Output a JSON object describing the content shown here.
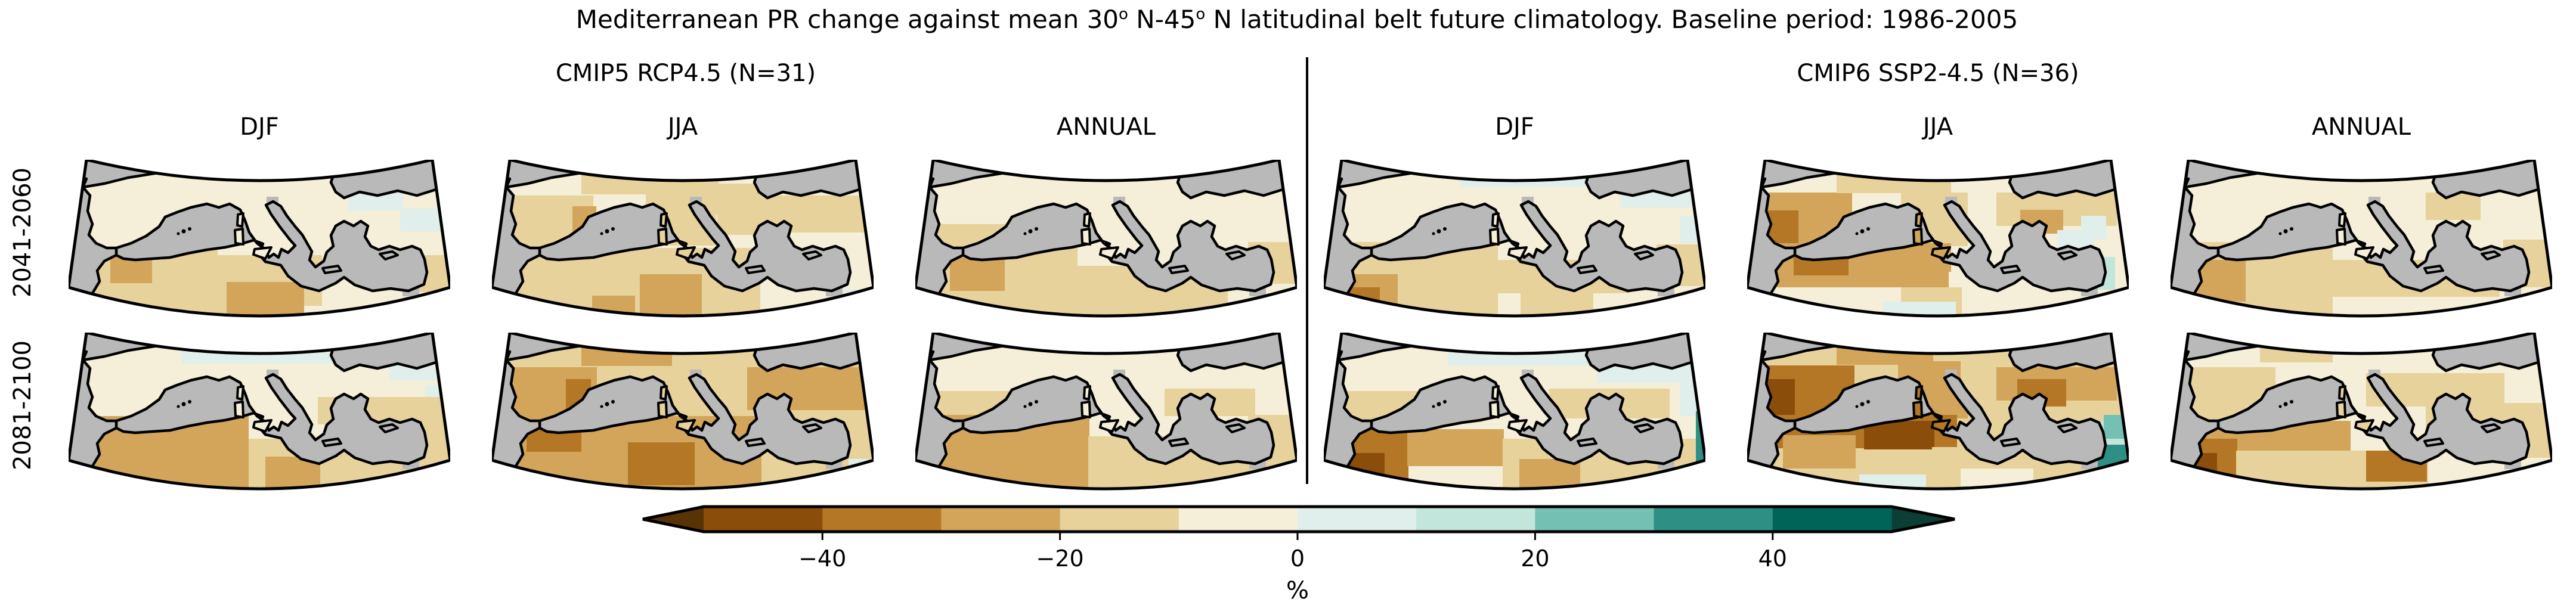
{
  "title": {
    "parts": [
      "Mediterranean PR change against mean 30",
      "o",
      " N-45",
      "o",
      " N latitudinal belt future climatology. Baseline period: 1986-2005"
    ]
  },
  "groups": [
    {
      "label": "CMIP5 RCP4.5 (N=31)"
    },
    {
      "label": "CMIP6 SSP2-4.5 (N=36)"
    }
  ],
  "columns": [
    "DJF",
    "JJA",
    "ANNUAL",
    "DJF",
    "JJA",
    "ANNUAL"
  ],
  "rows": [
    "2041-2060",
    "2081-2100"
  ],
  "palette": {
    "bin_colors": [
      "#8a4e0a",
      "#b37726",
      "#d2a55a",
      "#e8d29c",
      "#f5eed8",
      "#e0efeb",
      "#c2e5dc",
      "#74c0b2",
      "#2e9085",
      "#016459"
    ],
    "under_arrow": "#573305",
    "over_arrow": "#0b3f35",
    "sea_mask": "#b9b9b9",
    "coastline": "#000000"
  },
  "colorbar": {
    "unit": "%",
    "tick_labels": [
      "−40",
      "−20",
      "0",
      "20",
      "40"
    ],
    "tick_values": [
      -40,
      -20,
      0,
      20,
      40
    ],
    "range": [
      -50,
      50
    ],
    "levels": [
      -50,
      -40,
      -30,
      -20,
      -10,
      0,
      10,
      20,
      30,
      40,
      50
    ],
    "extend": "both"
  },
  "chart_data": {
    "type": "heatmap",
    "subtype": "map-panel-grid",
    "title": "Mediterranean PR change against mean 30° N-45° N latitudinal belt future climatology. Baseline period: 1986-2005",
    "variable": "precipitation change (%)",
    "value_range": [
      -50,
      50
    ],
    "legend_position": "bottom",
    "col_groups": [
      {
        "label": "CMIP5 RCP4.5 (N=31)",
        "seasons": [
          "DJF",
          "JJA",
          "ANNUAL"
        ]
      },
      {
        "label": "CMIP6 SSP2-4.5 (N=36)",
        "seasons": [
          "DJF",
          "JJA",
          "ANNUAL"
        ]
      }
    ],
    "periods": [
      "2041-2060",
      "2081-2100"
    ],
    "panels": [
      {
        "row": 0,
        "col": 0,
        "scenario": "CMIP5 RCP4.5",
        "season": "DJF",
        "period": "2041-2060",
        "base": 4,
        "islands": null,
        "summary": "Weak drying (0 to -20%) over most land; -20 to -30% patches over NW Africa; slight wetting near NE edge",
        "patches": [
          [
            40,
            148,
            210,
            70,
            3
          ],
          [
            70,
            162,
            70,
            45,
            2
          ],
          [
            40,
            210,
            270,
            58,
            3
          ],
          [
            245,
            160,
            180,
            85,
            3
          ],
          [
            265,
            205,
            130,
            63,
            2
          ],
          [
            560,
            160,
            80,
            62,
            3
          ],
          [
            470,
            56,
            90,
            30,
            5
          ],
          [
            556,
            82,
            84,
            38,
            5
          ]
        ]
      },
      {
        "row": 0,
        "col": 1,
        "scenario": "CMIP5 RCP4.5",
        "season": "JJA",
        "period": "2041-2060",
        "base": 4,
        "islands": 3,
        "summary": "Drying -10 to -20% over Iberia, France, Italy and Anatolia; -20 to -30% patches in Libya; near zero SE",
        "patches": [
          [
            30,
            60,
            140,
            95,
            3
          ],
          [
            135,
            78,
            40,
            66,
            2
          ],
          [
            150,
            0,
            230,
            58,
            3
          ],
          [
            258,
            58,
            118,
            86,
            3
          ],
          [
            358,
            40,
            104,
            52,
            3
          ],
          [
            418,
            60,
            222,
            62,
            3
          ],
          [
            378,
            86,
            92,
            40,
            3
          ],
          [
            30,
            148,
            420,
            120,
            3
          ],
          [
            248,
            192,
            104,
            76,
            2
          ],
          [
            168,
            228,
            72,
            40,
            2
          ],
          [
            452,
            158,
            188,
            110,
            4
          ],
          [
            588,
            218,
            52,
            50,
            5
          ]
        ]
      },
      {
        "row": 0,
        "col": 2,
        "scenario": "CMIP5 RCP4.5",
        "season": "ANNUAL",
        "period": "2041-2060",
        "base": 4,
        "islands": null,
        "summary": "Mostly 0 to -10%; -10 to -20% over NW Africa with -20 to -30% core over Morocco",
        "patches": [
          [
            30,
            108,
            142,
            46,
            3
          ],
          [
            30,
            148,
            242,
            120,
            3
          ],
          [
            58,
            164,
            92,
            56,
            2
          ],
          [
            272,
            178,
            252,
            90,
            3
          ],
          [
            598,
            0,
            42,
            30,
            5
          ],
          [
            558,
            138,
            82,
            70,
            3
          ]
        ]
      },
      {
        "row": 0,
        "col": 3,
        "scenario": "CMIP6 SSP2-4.5",
        "season": "DJF",
        "period": "2041-2060",
        "base": 4,
        "islands": null,
        "summary": "Slight wetting (0-10%) along northern edge and Black Sea coast; -10 to -30% over NW Africa, strongest SW Morocco",
        "patches": [
          [
            228,
            0,
            282,
            46,
            5
          ],
          [
            498,
            40,
            142,
            40,
            5
          ],
          [
            598,
            94,
            42,
            46,
            5
          ],
          [
            30,
            138,
            262,
            130,
            3
          ],
          [
            30,
            192,
            94,
            76,
            2
          ],
          [
            30,
            214,
            64,
            54,
            1
          ],
          [
            290,
            168,
            222,
            56,
            3
          ],
          [
            558,
            142,
            82,
            70,
            3
          ],
          [
            330,
            212,
            122,
            56,
            3
          ]
        ]
      },
      {
        "row": 0,
        "col": 4,
        "scenario": "CMIP6 SSP2-4.5",
        "season": "JJA",
        "period": "2041-2060",
        "base": 4,
        "islands": 2,
        "summary": "Drying -20 to -40% over Iberia (strongest Portugal) and the Maghreb; +10 to +20% patch at SE edge",
        "patches": [
          [
            30,
            55,
            146,
            100,
            2
          ],
          [
            30,
            85,
            56,
            66,
            1
          ],
          [
            150,
            0,
            192,
            56,
            3
          ],
          [
            258,
            55,
            112,
            90,
            3
          ],
          [
            418,
            55,
            202,
            56,
            3
          ],
          [
            458,
            84,
            72,
            40,
            2
          ],
          [
            30,
            140,
            312,
            74,
            2
          ],
          [
            78,
            148,
            92,
            46,
            1
          ],
          [
            338,
            188,
            222,
            80,
            4
          ],
          [
            258,
            214,
            102,
            54,
            3
          ],
          [
            520,
            118,
            62,
            50,
            5
          ],
          [
            560,
            94,
            42,
            40,
            5
          ],
          [
            545,
            163,
            72,
            55,
            6
          ],
          [
            228,
            238,
            122,
            30,
            5
          ]
        ]
      },
      {
        "row": 0,
        "col": 5,
        "scenario": "CMIP6 SSP2-4.5",
        "season": "ANNUAL",
        "period": "2041-2060",
        "base": 4,
        "islands": null,
        "summary": "Mild drying -10 to -20% over NW Africa and Morocco; near zero elsewhere",
        "patches": [
          [
            30,
            138,
            242,
            130,
            3
          ],
          [
            34,
            168,
            92,
            70,
            2
          ],
          [
            270,
            168,
            282,
            62,
            3
          ],
          [
            428,
            55,
            92,
            46,
            3
          ],
          [
            558,
            134,
            82,
            80,
            3
          ],
          [
            612,
            0,
            28,
            24,
            5
          ]
        ]
      },
      {
        "row": 1,
        "col": 0,
        "scenario": "CMIP5 RCP4.5",
        "season": "DJF",
        "period": "2081-2100",
        "base": 4,
        "islands": null,
        "summary": "Wetting band 0-10% along northern edge; -20 to -30% over NW Africa; -10 to -20% along south Turkey coast",
        "patches": [
          [
            190,
            0,
            312,
            52,
            5
          ],
          [
            538,
            40,
            102,
            40,
            5
          ],
          [
            598,
            88,
            42,
            42,
            5
          ],
          [
            30,
            140,
            272,
            128,
            2
          ],
          [
            302,
            178,
            338,
            90,
            3
          ],
          [
            418,
            108,
            222,
            46,
            3
          ],
          [
            558,
            148,
            82,
            70,
            3
          ],
          [
            330,
            208,
            92,
            60,
            2
          ]
        ]
      },
      {
        "row": 1,
        "col": 1,
        "scenario": "CMIP5 RCP4.5",
        "season": "JJA",
        "period": "2081-2100",
        "base": 3,
        "islands": 3,
        "summary": "Widespread -10 to -30% drying; -30 to -40% spots over Spain, W Turkey and the Maghreb; slight wetting SE corner",
        "patches": [
          [
            30,
            58,
            146,
            96,
            2
          ],
          [
            124,
            78,
            42,
            52,
            1
          ],
          [
            150,
            0,
            152,
            56,
            2
          ],
          [
            438,
            68,
            82,
            56,
            1
          ],
          [
            428,
            58,
            212,
            72,
            2
          ],
          [
            30,
            140,
            422,
            128,
            2
          ],
          [
            58,
            150,
            92,
            50,
            1
          ],
          [
            228,
            184,
            112,
            72,
            1
          ],
          [
            468,
            168,
            172,
            100,
            3
          ],
          [
            598,
            212,
            42,
            56,
            5
          ],
          [
            598,
            4,
            42,
            32,
            5
          ]
        ]
      },
      {
        "row": 1,
        "col": 2,
        "scenario": "CMIP5 RCP4.5",
        "season": "ANNUAL",
        "period": "2081-2100",
        "base": 4,
        "islands": null,
        "summary": "Moderate drying; -20 to -30% over NW Africa; -10 to -20% across North Africa and S Iberia",
        "patches": [
          [
            30,
            98,
            146,
            56,
            3
          ],
          [
            30,
            138,
            262,
            130,
            2
          ],
          [
            290,
            174,
            350,
            94,
            3
          ],
          [
            418,
            94,
            152,
            46,
            3
          ],
          [
            558,
            138,
            82,
            80,
            3
          ],
          [
            608,
            0,
            32,
            26,
            5
          ]
        ]
      },
      {
        "row": 1,
        "col": 3,
        "scenario": "CMIP6 SSP2-4.5",
        "season": "DJF",
        "period": "2081-2100",
        "base": 4,
        "islands": null,
        "summary": "Wetting band 0-10% along northern edge; strong drying -30 to -50% Morocco/W Algeria; +30 to +40% sliver at E edge",
        "patches": [
          [
            208,
            0,
            332,
            56,
            5
          ],
          [
            458,
            40,
            182,
            44,
            5
          ],
          [
            598,
            84,
            42,
            56,
            5
          ],
          [
            30,
            98,
            146,
            52,
            3
          ],
          [
            30,
            162,
            112,
            106,
            1
          ],
          [
            30,
            202,
            72,
            66,
            0
          ],
          [
            140,
            162,
            162,
            62,
            2
          ],
          [
            300,
            178,
            340,
            90,
            3
          ],
          [
            378,
            94,
            202,
            50,
            3
          ],
          [
            328,
            212,
            102,
            56,
            2
          ],
          [
            624,
            132,
            16,
            96,
            8
          ]
        ]
      },
      {
        "row": 1,
        "col": 4,
        "scenario": "CMIP6 SSP2-4.5",
        "season": "JJA",
        "period": "2081-2100",
        "base": 3,
        "islands": 1,
        "summary": "Strong drying -30 to -50% over Iberia and Maghreb coast, -20 to -30% France/Italy/Anatolia; +30 to +40% patch SE corner",
        "patches": [
          [
            30,
            55,
            150,
            100,
            1
          ],
          [
            28,
            78,
            52,
            78,
            0
          ],
          [
            150,
            0,
            162,
            54,
            2
          ],
          [
            253,
            48,
            117,
            96,
            2
          ],
          [
            358,
            34,
            112,
            66,
            3
          ],
          [
            418,
            58,
            202,
            56,
            2
          ],
          [
            453,
            78,
            82,
            46,
            1
          ],
          [
            30,
            138,
            322,
            56,
            1
          ],
          [
            196,
            148,
            118,
            48,
            0
          ],
          [
            60,
            172,
            122,
            56,
            2
          ],
          [
            310,
            192,
            212,
            76,
            3
          ],
          [
            358,
            228,
            122,
            40,
            4
          ],
          [
            573,
            163,
            67,
            105,
            8
          ],
          [
            543,
            148,
            97,
            40,
            6
          ],
          [
            598,
            138,
            42,
            40,
            7
          ],
          [
            188,
            238,
            112,
            30,
            5
          ]
        ]
      },
      {
        "row": 1,
        "col": 5,
        "scenario": "CMIP6 SSP2-4.5",
        "season": "ANNUAL",
        "period": "2081-2100",
        "base": 4,
        "islands": 3,
        "summary": "Moderate to strong drying; -30 to -50% SW Morocco; -20 to -30% NW Africa band and Gulf of Sidra coast",
        "patches": [
          [
            30,
            58,
            146,
            96,
            3
          ],
          [
            150,
            0,
            122,
            50,
            3
          ],
          [
            30,
            148,
            272,
            60,
            2
          ],
          [
            30,
            178,
            82,
            76,
            1
          ],
          [
            30,
            202,
            48,
            52,
            0
          ],
          [
            110,
            198,
            322,
            70,
            3
          ],
          [
            328,
            198,
            102,
            52,
            1
          ],
          [
            328,
            68,
            232,
            56,
            3
          ],
          [
            558,
            118,
            82,
            92,
            3
          ],
          [
            428,
            124,
            212,
            42,
            3
          ]
        ]
      }
    ]
  }
}
